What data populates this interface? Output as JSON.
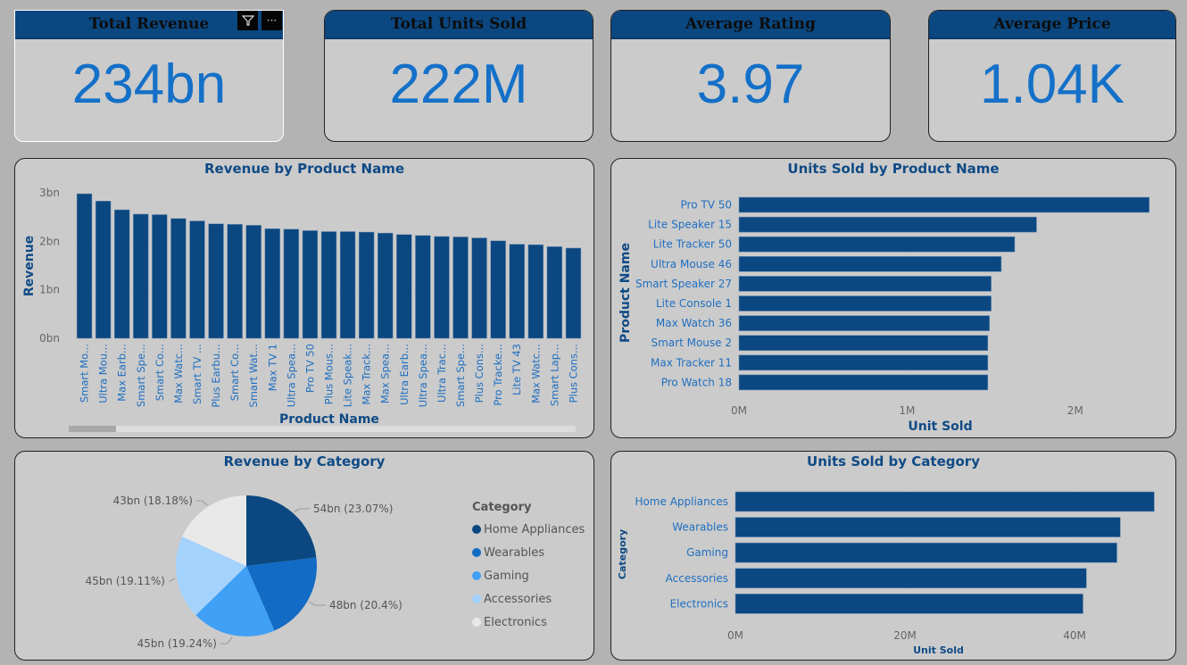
{
  "kpis": [
    {
      "title": "Total Revenue",
      "value": "234bn"
    },
    {
      "title": "Total Units Sold",
      "value": "222M"
    },
    {
      "title": "Average Rating",
      "value": "3.97"
    },
    {
      "title": "Average Price",
      "value": "1.04K"
    }
  ],
  "header_icons": {
    "filter": "filter-icon",
    "more": "more-options-icon",
    "more_label": "···"
  },
  "colors": {
    "accent": "#0b4780",
    "kpi_value": "#1470c8",
    "label_blue": "#1f6fc0",
    "title_blue": "#0f4a85",
    "background": "#b3b3b3",
    "card": "#cbcbcb"
  },
  "chart_data": [
    {
      "type": "bar",
      "title": "Revenue by Product Name",
      "xlabel": "Product Name",
      "ylabel": "Revenue",
      "ylim": [
        0,
        3
      ],
      "yticks": [
        "0bn",
        "1bn",
        "2bn",
        "3bn"
      ],
      "unit": "bn",
      "categories": [
        "Smart Mo...",
        "Ultra Mou...",
        "Max Earb...",
        "Smart Spe...",
        "Smart Co...",
        "Max Watc...",
        "Smart TV ...",
        "Plus Earbu...",
        "Smart Co...",
        "Smart Wat...",
        "Max TV 1",
        "Ultra Spea...",
        "Pro TV 50",
        "Plus Mous...",
        "Lite Speak...",
        "Max Track...",
        "Max Spea...",
        "Ultra Earb...",
        "Ultra Spea...",
        "Ultra Trac...",
        "Smart Spe...",
        "Plus Cons...",
        "Pro Tracke...",
        "Lite TV 43",
        "Max Watc...",
        "Smart Lap...",
        "Plus Cons..."
      ],
      "values": [
        2.98,
        2.83,
        2.65,
        2.56,
        2.55,
        2.47,
        2.42,
        2.36,
        2.35,
        2.33,
        2.26,
        2.25,
        2.22,
        2.2,
        2.2,
        2.19,
        2.17,
        2.14,
        2.12,
        2.1,
        2.09,
        2.07,
        2.01,
        1.94,
        1.93,
        1.89,
        1.86
      ],
      "grid": true
    },
    {
      "type": "bar",
      "orientation": "horizontal",
      "title": "Units Sold by Product Name",
      "xlabel": "Unit Sold",
      "ylabel": "Product Name",
      "xlim": [
        0,
        2.5
      ],
      "xticks": [
        "0M",
        "1M",
        "2M"
      ],
      "unit": "M",
      "categories": [
        "Pro TV 50",
        "Lite Speaker 15",
        "Lite Tracker 50",
        "Ultra Mouse 46",
        "Smart Speaker 27",
        "Lite Console 1",
        "Max Watch 36",
        "Smart Mouse 2",
        "Max Tracker 11",
        "Pro Watch 18"
      ],
      "values": [
        2.44,
        1.77,
        1.64,
        1.56,
        1.5,
        1.5,
        1.49,
        1.48,
        1.48,
        1.48
      ]
    },
    {
      "type": "pie",
      "title": "Revenue by Category",
      "legend_title": "Category",
      "legend_position": "right",
      "slices": [
        {
          "name": "Home Appliances",
          "value": 54,
          "label": "54bn (23.07%)",
          "percent": 23.07,
          "color": "#0b4780"
        },
        {
          "name": "Wearables",
          "value": 48,
          "label": "48bn (20.4%)",
          "percent": 20.4,
          "color": "#126bc4"
        },
        {
          "name": "Gaming",
          "value": 45,
          "label": "45bn (19.24%)",
          "percent": 19.24,
          "color": "#3fa0f5"
        },
        {
          "name": "Accessories",
          "value": 45,
          "label": "45bn (19.11%)",
          "percent": 19.11,
          "color": "#a3d2fc"
        },
        {
          "name": "Electronics",
          "value": 43,
          "label": "43bn (18.18%)",
          "percent": 18.18,
          "color": "#e9e9e9"
        }
      ]
    },
    {
      "type": "bar",
      "orientation": "horizontal",
      "title": "Units Sold by Category",
      "xlabel": "Unit Sold",
      "ylabel": "Category",
      "xlim": [
        0,
        50
      ],
      "xticks": [
        "0M",
        "20M",
        "40M"
      ],
      "unit": "M",
      "categories": [
        "Home Appliances",
        "Wearables",
        "Gaming",
        "Accessories",
        "Electronics"
      ],
      "values": [
        49.4,
        45.4,
        45.0,
        41.4,
        41.0
      ]
    }
  ]
}
